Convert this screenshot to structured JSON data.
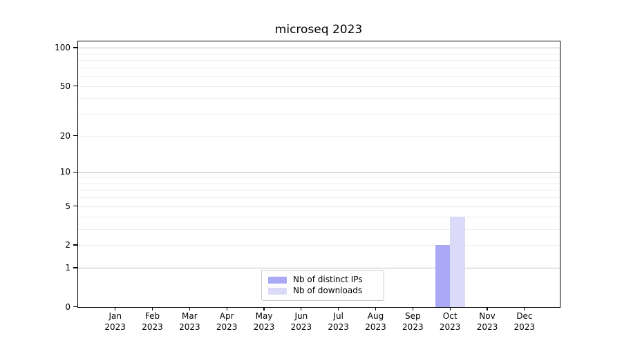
{
  "chart_data": {
    "type": "bar",
    "title": "microseq 2023",
    "categories": [
      "Jan\n2023",
      "Feb\n2023",
      "Mar\n2023",
      "Apr\n2023",
      "May\n2023",
      "Jun\n2023",
      "Jul\n2023",
      "Aug\n2023",
      "Sep\n2023",
      "Oct\n2023",
      "Nov\n2023",
      "Dec\n2023"
    ],
    "series": [
      {
        "name": "Nb of distinct IPs",
        "color": "#a9a9f6",
        "values": [
          0,
          0,
          0,
          0,
          0,
          0,
          0,
          0,
          0,
          2,
          0,
          0
        ]
      },
      {
        "name": "Nb of downloads",
        "color": "#dbdbf9",
        "values": [
          0,
          0,
          0,
          0,
          0,
          0,
          0,
          0,
          0,
          4,
          0,
          0
        ]
      }
    ],
    "xlabel": "",
    "ylabel": "",
    "yscale": "log1p",
    "ylim": [
      0,
      110
    ],
    "yticks": [
      {
        "value": 0,
        "label": "0"
      },
      {
        "value": 1,
        "label": "1"
      },
      {
        "value": 2,
        "label": "2"
      },
      {
        "value": 5,
        "label": "5"
      },
      {
        "value": 10,
        "label": "10"
      },
      {
        "value": 20,
        "label": "20"
      },
      {
        "value": 50,
        "label": "50"
      },
      {
        "value": 100,
        "label": "100"
      }
    ],
    "major_gridlines": [
      1,
      10,
      100
    ],
    "minor_gridlines": [
      2,
      3,
      4,
      5,
      6,
      7,
      8,
      9,
      20,
      30,
      40,
      50,
      60,
      70,
      80,
      90
    ],
    "grid": true,
    "legend_position": "lower center (inside axes)"
  }
}
